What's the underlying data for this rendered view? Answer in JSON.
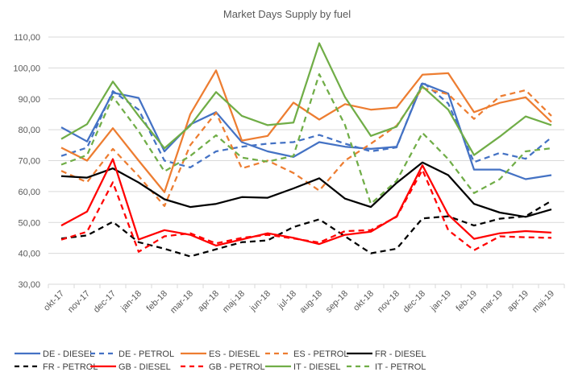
{
  "chart_data": {
    "type": "line",
    "title": "Market Days Supply by fuel",
    "xlabel": "",
    "ylabel": "",
    "ylim": [
      30,
      110
    ],
    "yticks": [
      "30,00",
      "40,00",
      "50,00",
      "60,00",
      "70,00",
      "80,00",
      "90,00",
      "100,00",
      "110,00"
    ],
    "ytick_values": [
      30,
      40,
      50,
      60,
      70,
      80,
      90,
      100,
      110
    ],
    "grid": true,
    "legend_position": "bottom",
    "categories": [
      "okt-17",
      "nov-17",
      "dec-17",
      "jan-18",
      "feb-18",
      "mar-18",
      "apr-18",
      "maj-18",
      "jun-18",
      "jul-18",
      "aug-18",
      "sep-18",
      "okt-18",
      "nov-18",
      "dec-18",
      "jan-19",
      "feb-19",
      "mar-19",
      "apr-19",
      "maj-19"
    ],
    "series": [
      {
        "name": "DE - DIESEL",
        "color": "#4472C4",
        "dash": false,
        "values": [
          80.8,
          76.2,
          92.0,
          90.3,
          73.0,
          81.7,
          85.7,
          76.0,
          73.0,
          71.2,
          76.0,
          74.5,
          73.8,
          74.5,
          95.0,
          91.7,
          67.1,
          67.1,
          64.0,
          65.3
        ]
      },
      {
        "name": "DE - PETROL",
        "color": "#4472C4",
        "dash": true,
        "values": [
          71.5,
          74.2,
          92.5,
          86.5,
          70.0,
          67.8,
          73.0,
          74.5,
          75.5,
          76.0,
          78.3,
          75.5,
          73.0,
          74.3,
          95.5,
          88.5,
          69.5,
          72.5,
          70.6,
          77.5
        ]
      },
      {
        "name": "ES - DIESEL",
        "color": "#ED7D31",
        "dash": false,
        "values": [
          74.2,
          70.0,
          80.5,
          70.0,
          59.8,
          85.0,
          99.2,
          76.5,
          78.0,
          88.8,
          83.3,
          88.3,
          86.5,
          87.2,
          97.8,
          98.3,
          85.7,
          88.7,
          90.5,
          82.5
        ]
      },
      {
        "name": "ES - PETROL",
        "color": "#ED7D31",
        "dash": true,
        "values": [
          66.7,
          63.0,
          73.8,
          65.0,
          55.3,
          75.0,
          85.5,
          67.5,
          70.0,
          66.0,
          60.3,
          70.0,
          75.5,
          81.3,
          93.5,
          91.5,
          83.5,
          90.8,
          92.8,
          84.5
        ]
      },
      {
        "name": "FR - DIESEL",
        "color": "#000000",
        "dash": false,
        "values": [
          65.0,
          64.5,
          67.5,
          62.9,
          57.5,
          55.0,
          56.0,
          58.2,
          58.0,
          61.0,
          64.3,
          57.7,
          55.0,
          62.8,
          69.4,
          65.3,
          56.0,
          53.2,
          51.8,
          54.2
        ]
      },
      {
        "name": "FR - PETROL",
        "color": "#000000",
        "dash": true,
        "values": [
          44.8,
          45.8,
          50.2,
          43.6,
          41.5,
          39.0,
          41.3,
          43.6,
          44.2,
          48.5,
          51.0,
          45.5,
          40.0,
          41.5,
          51.3,
          52.0,
          49.0,
          51.2,
          52.0,
          57.0
        ]
      },
      {
        "name": "GB - DIESEL",
        "color": "#FF0000",
        "dash": false,
        "values": [
          49.0,
          53.5,
          70.5,
          44.5,
          47.5,
          46.0,
          42.5,
          44.5,
          46.5,
          45.0,
          43.0,
          46.0,
          47.0,
          52.0,
          68.5,
          52.5,
          44.7,
          46.5,
          47.2,
          46.7
        ]
      },
      {
        "name": "GB - PETROL",
        "color": "#FF0000",
        "dash": true,
        "values": [
          44.4,
          47.0,
          63.0,
          40.5,
          45.5,
          46.5,
          43.2,
          45.0,
          46.0,
          44.8,
          43.5,
          47.2,
          47.5,
          51.8,
          67.0,
          47.5,
          41.0,
          45.5,
          45.2,
          45.0
        ]
      },
      {
        "name": "IT - DIESEL",
        "color": "#70AD47",
        "dash": false,
        "values": [
          77.0,
          81.8,
          95.6,
          84.5,
          74.0,
          81.3,
          92.2,
          84.5,
          81.5,
          82.3,
          108.0,
          90.5,
          78.0,
          81.0,
          94.0,
          86.5,
          71.8,
          77.8,
          84.3,
          81.5
        ]
      },
      {
        "name": "IT - PETROL",
        "color": "#70AD47",
        "dash": true,
        "values": [
          68.7,
          71.8,
          90.7,
          79.5,
          66.5,
          71.5,
          78.2,
          71.0,
          69.7,
          71.5,
          98.0,
          81.5,
          56.0,
          63.5,
          79.0,
          70.5,
          59.5,
          64.0,
          73.0,
          74.0
        ]
      }
    ]
  }
}
